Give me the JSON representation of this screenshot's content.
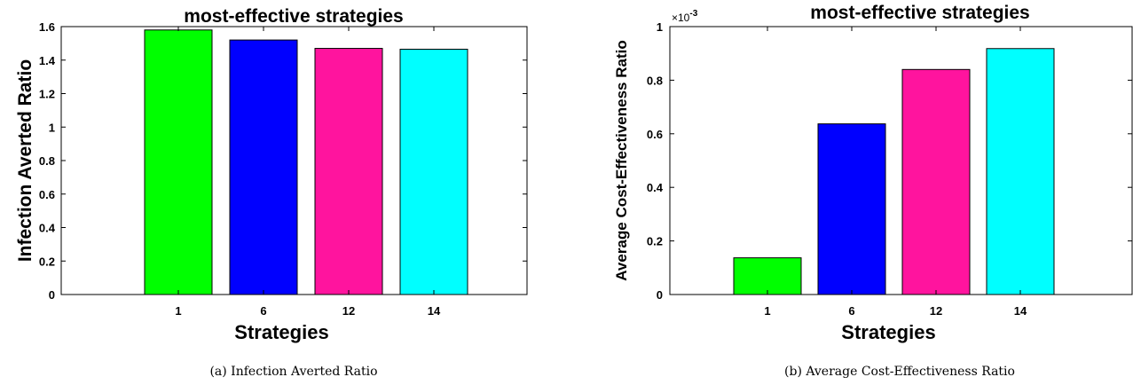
{
  "chart_data": [
    {
      "type": "bar",
      "title": "most-effective strategies",
      "xlabel": "Strategies",
      "ylabel": "Infection Averted Ratio",
      "categories": [
        "1",
        "6",
        "12",
        "14"
      ],
      "values": [
        1.58,
        1.52,
        1.47,
        1.465
      ],
      "colors": [
        "#00ff00",
        "#0000ff",
        "#ff149e",
        "#00ffff"
      ],
      "ylim": [
        0,
        1.6
      ],
      "yticks": [
        "0",
        "0.2",
        "0.4",
        "0.6",
        "0.8",
        "1",
        "1.2",
        "1.4",
        "1.6"
      ],
      "exponent_label": "",
      "caption": "(a) Infection Averted Ratio"
    },
    {
      "type": "bar",
      "title": "most-effective strategies",
      "xlabel": "Strategies",
      "ylabel": "Average Cost-Effectiveness Ratio",
      "categories": [
        "1",
        "6",
        "12",
        "14"
      ],
      "values": [
        0.000137,
        0.000637,
        0.00084,
        0.000918
      ],
      "colors": [
        "#00ff00",
        "#0000ff",
        "#ff149e",
        "#00ffff"
      ],
      "ylim": [
        0,
        0.001
      ],
      "yticks": [
        "0",
        "0.2",
        "0.4",
        "0.6",
        "0.8",
        "1"
      ],
      "exponent_label": "×10",
      "exponent_power": "-3",
      "caption": "(b) Average Cost-Effectiveness Ratio"
    }
  ]
}
